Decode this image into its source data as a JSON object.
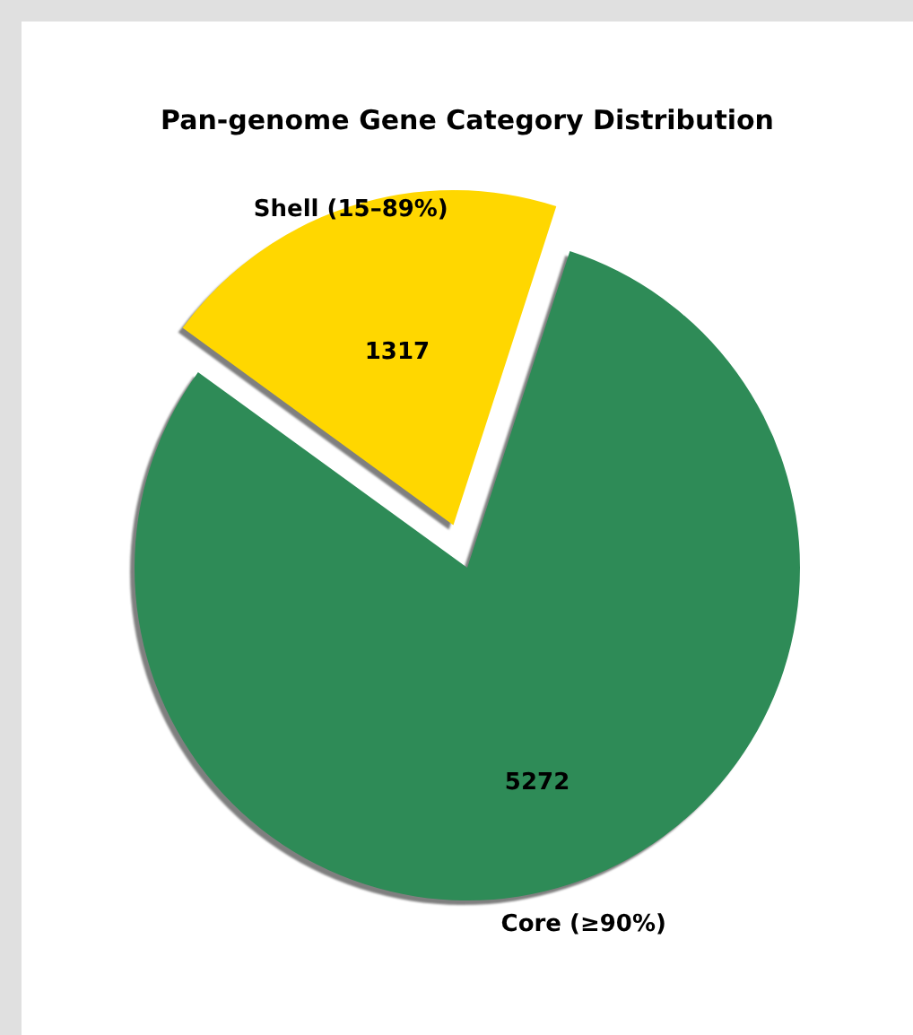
{
  "chart_data": {
    "type": "pie",
    "title": "Pan-genome Gene Category Distribution",
    "categories": [
      "Shell (15–89%)",
      "Core (≥90%)"
    ],
    "values": [
      1317,
      5272
    ],
    "colors": [
      "#ffd700",
      "#2e8b57"
    ],
    "data_labels": true,
    "legend": false
  }
}
